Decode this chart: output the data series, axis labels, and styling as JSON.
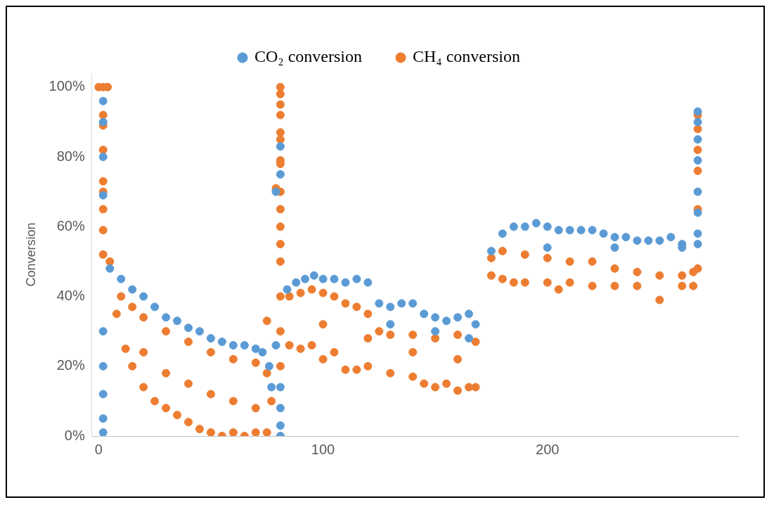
{
  "chart_data": {
    "type": "scatter",
    "ylabel": "Conversion",
    "xlim": [
      -3,
      285
    ],
    "xticks": [
      0,
      100,
      200
    ],
    "ylim": [
      0,
      104
    ],
    "yticks": [
      {
        "value": 0,
        "label": "0%"
      },
      {
        "value": 20,
        "label": "20%"
      },
      {
        "value": 40,
        "label": "40%"
      },
      {
        "value": 60,
        "label": "60%"
      },
      {
        "value": 80,
        "label": "80%"
      },
      {
        "value": 100,
        "label": "100%"
      }
    ],
    "grid": false,
    "legend": "top",
    "marker": "circle",
    "series": [
      {
        "name": "CO₂ conversion",
        "color": "#5b9bd5",
        "x": [
          2,
          2,
          2,
          2,
          2,
          2,
          2,
          2,
          2,
          5,
          10,
          15,
          20,
          25,
          30,
          35,
          40,
          45,
          50,
          55,
          60,
          65,
          70,
          73,
          76,
          77,
          79,
          79,
          81,
          81,
          81,
          81,
          81,
          81,
          84,
          88,
          92,
          96,
          100,
          105,
          110,
          115,
          120,
          125,
          130,
          135,
          140,
          145,
          150,
          155,
          160,
          165,
          168,
          130,
          150,
          165,
          175,
          180,
          185,
          190,
          195,
          200,
          205,
          210,
          215,
          220,
          225,
          230,
          235,
          240,
          245,
          250,
          255,
          260,
          200,
          230,
          260,
          267,
          267,
          267,
          267,
          267,
          267,
          267,
          267
        ],
        "values": [
          96,
          90,
          80,
          69,
          30,
          20,
          12,
          5,
          1,
          48,
          45,
          42,
          40,
          37,
          34,
          33,
          31,
          30,
          28,
          27,
          26,
          26,
          25,
          24,
          20,
          14,
          70,
          26,
          83,
          75,
          14,
          8,
          3,
          0,
          42,
          44,
          45,
          46,
          45,
          45,
          44,
          45,
          44,
          38,
          37,
          38,
          38,
          35,
          34,
          33,
          34,
          35,
          32,
          32,
          30,
          28,
          53,
          58,
          60,
          60,
          61,
          60,
          59,
          59,
          59,
          59,
          58,
          57,
          57,
          56,
          56,
          56,
          57,
          55,
          54,
          54,
          54,
          93,
          90,
          85,
          79,
          70,
          64,
          58,
          55
        ]
      },
      {
        "name": "CH₄ conversion",
        "color": "#ed7d31",
        "x": [
          0,
          2,
          4,
          2,
          2,
          2,
          2,
          2,
          2,
          2,
          2,
          5,
          10,
          15,
          20,
          30,
          40,
          50,
          60,
          70,
          75,
          77,
          8,
          12,
          15,
          20,
          25,
          30,
          35,
          40,
          45,
          50,
          55,
          60,
          65,
          70,
          75,
          20,
          30,
          40,
          50,
          60,
          70,
          79,
          75,
          81,
          81,
          81,
          81,
          81,
          81,
          81,
          81,
          81,
          81,
          81,
          81,
          81,
          81,
          81,
          81,
          85,
          90,
          95,
          100,
          105,
          110,
          115,
          120,
          125,
          130,
          140,
          150,
          160,
          168,
          85,
          90,
          95,
          100,
          105,
          110,
          115,
          120,
          130,
          140,
          145,
          150,
          155,
          160,
          165,
          168,
          100,
          120,
          140,
          160,
          175,
          180,
          190,
          200,
          210,
          220,
          230,
          240,
          250,
          260,
          265,
          175,
          180,
          185,
          190,
          200,
          205,
          210,
          220,
          230,
          240,
          250,
          260,
          265,
          267,
          267,
          267,
          267,
          267,
          267
        ],
        "values": [
          100,
          100,
          100,
          92,
          89,
          82,
          73,
          70,
          65,
          59,
          52,
          50,
          40,
          37,
          34,
          30,
          27,
          24,
          22,
          21,
          18,
          10,
          35,
          25,
          20,
          14,
          10,
          8,
          6,
          4,
          2,
          1,
          0,
          1,
          0,
          1,
          1,
          24,
          18,
          15,
          12,
          10,
          8,
          71,
          33,
          100,
          98,
          95,
          92,
          87,
          85,
          79,
          78,
          70,
          65,
          60,
          55,
          50,
          40,
          30,
          20,
          40,
          41,
          42,
          41,
          40,
          38,
          37,
          35,
          30,
          29,
          29,
          28,
          29,
          27,
          26,
          25,
          26,
          22,
          24,
          19,
          19,
          20,
          18,
          17,
          15,
          14,
          15,
          13,
          14,
          14,
          32,
          28,
          24,
          22,
          51,
          53,
          52,
          51,
          50,
          50,
          48,
          47,
          46,
          46,
          47,
          46,
          45,
          44,
          44,
          44,
          42,
          44,
          43,
          43,
          43,
          39,
          43,
          43,
          92,
          88,
          82,
          76,
          65,
          48
        ]
      }
    ]
  }
}
